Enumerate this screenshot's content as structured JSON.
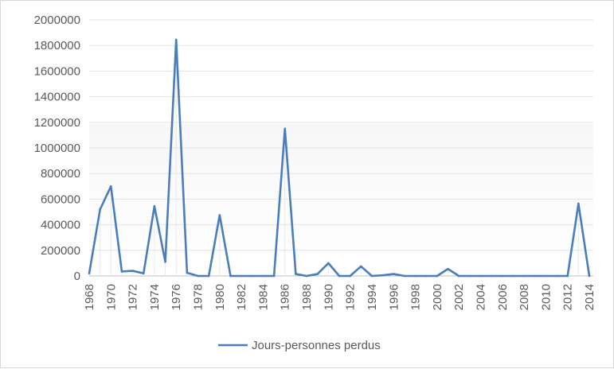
{
  "chart_data": {
    "type": "line",
    "title": "",
    "xlabel": "",
    "ylabel": "",
    "ylim": [
      0,
      2000000
    ],
    "y_ticks": [
      "0",
      "200000",
      "400000",
      "600000",
      "800000",
      "1000000",
      "1200000",
      "1400000",
      "1600000",
      "1800000",
      "2000000"
    ],
    "x_tick_labels": [
      "1968",
      "1970",
      "1972",
      "1974",
      "1976",
      "1978",
      "1980",
      "1982",
      "1984",
      "1986",
      "1988",
      "1990",
      "1992",
      "1994",
      "1996",
      "1998",
      "2000",
      "2002",
      "2004",
      "2006",
      "2008",
      "2010",
      "2012",
      "2014"
    ],
    "grid": "horizontal",
    "legend_position": "bottom",
    "series": [
      {
        "name": "Jours-personnes perdus",
        "color": "#4a7ebb",
        "x": [
          1968,
          1969,
          1970,
          1971,
          1972,
          1973,
          1974,
          1975,
          1976,
          1977,
          1978,
          1979,
          1980,
          1981,
          1982,
          1983,
          1984,
          1985,
          1986,
          1987,
          1988,
          1989,
          1990,
          1991,
          1992,
          1993,
          1994,
          1995,
          1996,
          1997,
          1998,
          1999,
          2000,
          2001,
          2002,
          2003,
          2004,
          2005,
          2006,
          2007,
          2008,
          2009,
          2010,
          2011,
          2012,
          2013,
          2014
        ],
        "values": [
          20000,
          520000,
          700000,
          35000,
          40000,
          20000,
          545000,
          110000,
          1845000,
          25000,
          0,
          0,
          475000,
          0,
          0,
          0,
          0,
          0,
          1150000,
          15000,
          0,
          15000,
          100000,
          0,
          0,
          75000,
          0,
          5000,
          15000,
          0,
          0,
          0,
          0,
          55000,
          0,
          0,
          0,
          0,
          0,
          0,
          0,
          0,
          0,
          0,
          0,
          565000,
          0
        ]
      }
    ]
  }
}
